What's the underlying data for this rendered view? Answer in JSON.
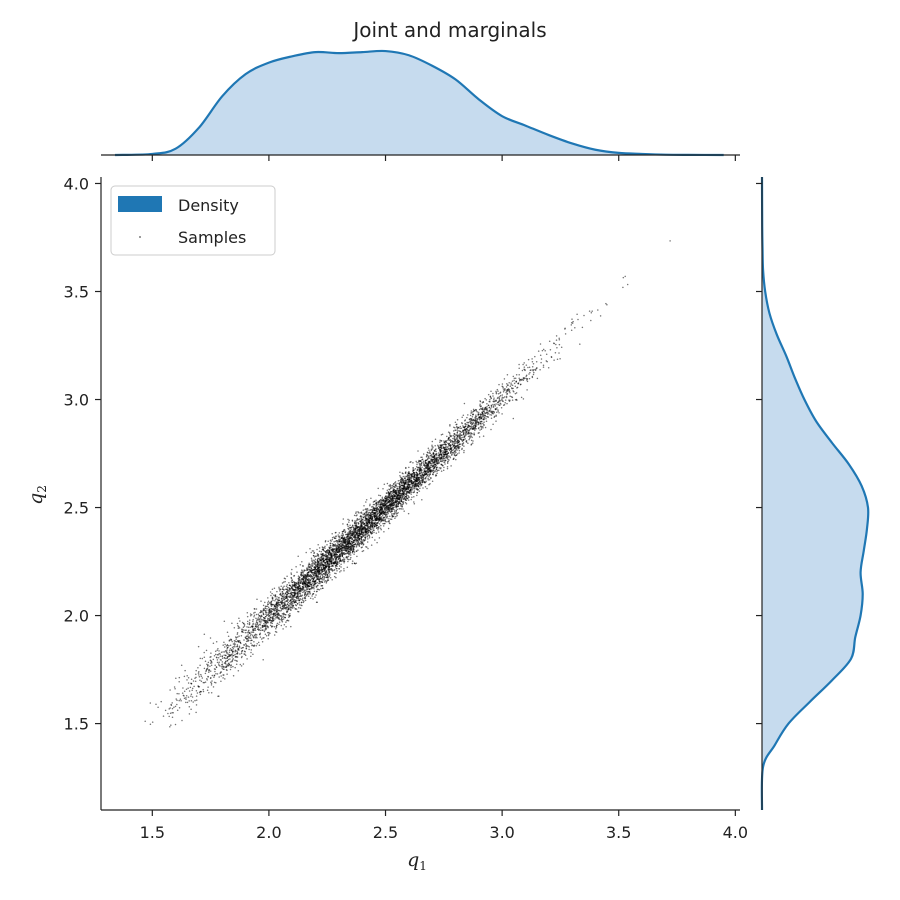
{
  "chart_data": {
    "type": "scatter",
    "title": "Joint and marginals",
    "xlabel": "q",
    "xlabel_sub": "1",
    "ylabel": "q",
    "ylabel_sub": "2",
    "xlim": [
      1.28,
      4.02
    ],
    "ylim": [
      1.1,
      4.03
    ],
    "xticks": [
      "1.5",
      "2.0",
      "2.5",
      "3.0",
      "3.5",
      "4.0"
    ],
    "yticks": [
      "1.5",
      "2.0",
      "2.5",
      "3.0",
      "3.5",
      "4.0"
    ],
    "legend": {
      "placement": "upper-left",
      "entries": [
        {
          "label": "Density",
          "kind": "patch"
        },
        {
          "label": "Samples",
          "kind": "marker"
        }
      ]
    },
    "colors": {
      "kde_line": "#1f77b4",
      "kde_fill": "#c6dbee",
      "points": "#000000"
    },
    "joint": {
      "n_points": 6000,
      "mean": [
        2.4,
        2.4
      ],
      "x_range": [
        1.55,
        3.77
      ],
      "y_range": [
        1.37,
        3.75
      ],
      "correlation": 0.99
    },
    "marginal_x": {
      "x": [
        1.34,
        1.5,
        1.6,
        1.7,
        1.8,
        1.9,
        2.0,
        2.1,
        2.2,
        2.3,
        2.4,
        2.5,
        2.6,
        2.7,
        2.8,
        2.9,
        3.0,
        3.1,
        3.2,
        3.3,
        3.4,
        3.5,
        3.6,
        3.7,
        3.8,
        3.95
      ],
      "density": [
        0.0,
        0.01,
        0.06,
        0.26,
        0.56,
        0.77,
        0.88,
        0.94,
        0.98,
        0.97,
        0.98,
        0.99,
        0.95,
        0.85,
        0.72,
        0.53,
        0.37,
        0.28,
        0.19,
        0.11,
        0.05,
        0.02,
        0.01,
        0.003,
        0.001,
        0.0
      ]
    },
    "marginal_y": {
      "y": [
        1.1,
        1.3,
        1.4,
        1.5,
        1.6,
        1.7,
        1.8,
        1.9,
        2.0,
        2.1,
        2.2,
        2.3,
        2.4,
        2.5,
        2.6,
        2.7,
        2.8,
        2.9,
        3.0,
        3.1,
        3.2,
        3.3,
        3.4,
        3.5,
        3.6,
        3.7,
        3.8,
        4.03
      ],
      "density": [
        0.0,
        0.01,
        0.12,
        0.25,
        0.45,
        0.66,
        0.84,
        0.88,
        0.93,
        0.95,
        0.93,
        0.96,
        0.99,
        1.0,
        0.94,
        0.82,
        0.66,
        0.51,
        0.4,
        0.31,
        0.23,
        0.14,
        0.07,
        0.03,
        0.01,
        0.005,
        0.002,
        0.0
      ]
    }
  }
}
